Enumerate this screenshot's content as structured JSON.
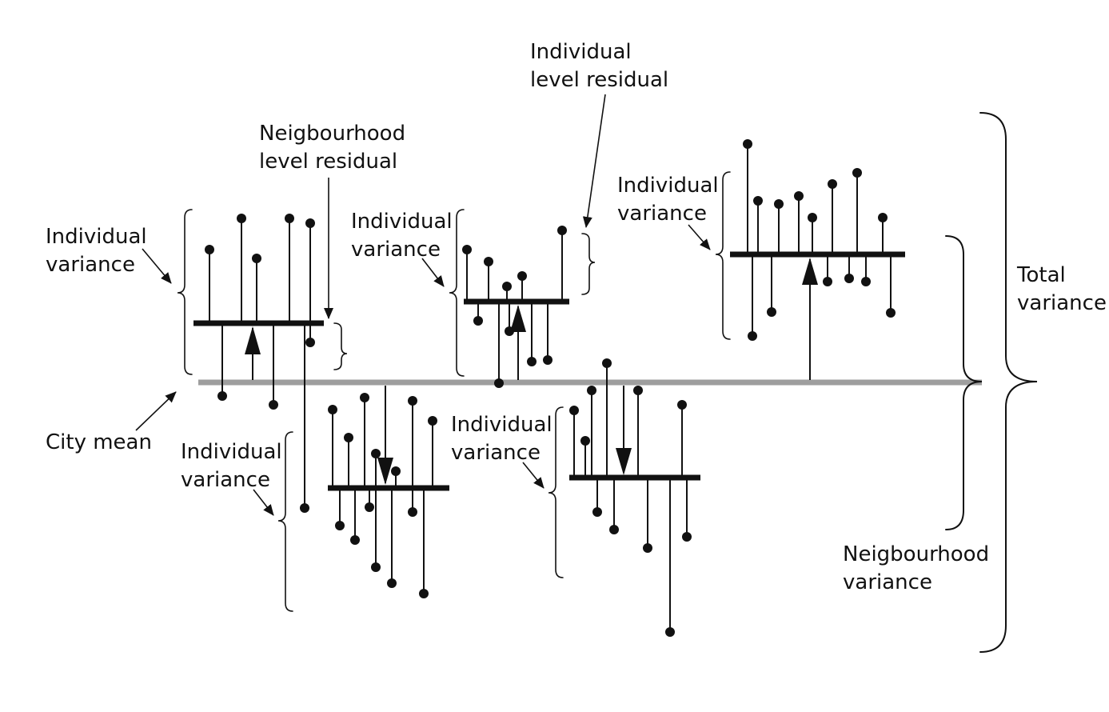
{
  "colors": {
    "ink": "#111111",
    "city_mean_line": "#9e9e9e",
    "background": "#ffffff"
  },
  "labels": {
    "individual_level_residual": [
      "Individual",
      "level residual"
    ],
    "neighbourhood_level_residual": [
      "Neigbourhood",
      "level residual"
    ],
    "individual_variance_1": [
      "Individual",
      "variance"
    ],
    "individual_variance_2": [
      "Individual",
      "variance"
    ],
    "individual_variance_3": [
      "Individual",
      "variance"
    ],
    "individual_variance_4": [
      "Individual",
      "variance"
    ],
    "individual_variance_5": [
      "Individual",
      "variance"
    ],
    "city_mean": "City mean",
    "total_variance": [
      "Total",
      "variance"
    ],
    "neighbourhood_variance": [
      "Neigbourhood",
      "variance"
    ]
  }
}
